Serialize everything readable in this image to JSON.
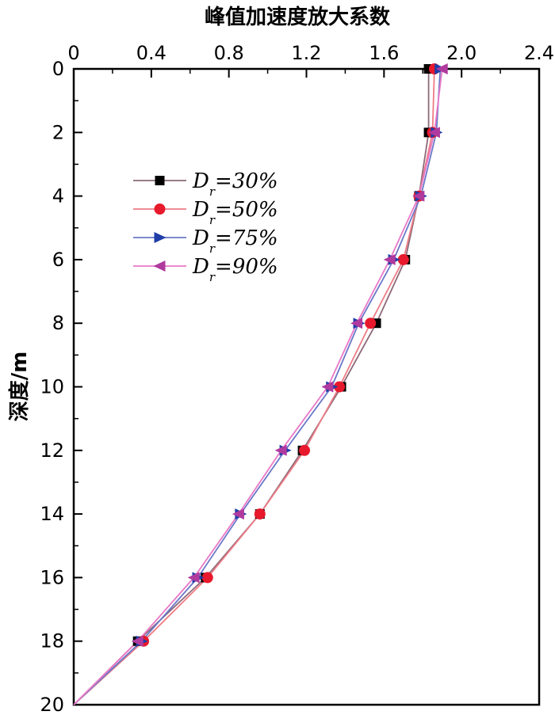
{
  "chart_data": {
    "type": "line",
    "title": "",
    "xlabel": "峰值加速度放大系数",
    "ylabel": "深度/m",
    "xlim": [
      0,
      2.4
    ],
    "ylim": [
      0,
      20
    ],
    "x_axis_position": "top",
    "y_axis_inverted": true,
    "x_ticks": [
      "0",
      "0.4",
      "0.8",
      "1.2",
      "1.6",
      "2.0",
      "2.4"
    ],
    "y_ticks": [
      "0",
      "2",
      "4",
      "6",
      "8",
      "10",
      "12",
      "14",
      "16",
      "18",
      "20"
    ],
    "grid": false,
    "legend_position": "upper-left",
    "series": [
      {
        "name": "Dr=30%",
        "legend_main": "D",
        "legend_sub": "r",
        "legend_tail": "=30%",
        "color": "#000000",
        "line_color": "#8c6a78",
        "marker": "square",
        "points": [
          [
            1.83,
            0
          ],
          [
            1.83,
            2
          ],
          [
            1.78,
            4
          ],
          [
            1.71,
            6
          ],
          [
            1.56,
            8
          ],
          [
            1.38,
            10
          ],
          [
            1.18,
            12
          ],
          [
            0.96,
            14
          ],
          [
            0.68,
            16
          ],
          [
            0.33,
            18
          ],
          [
            0,
            20
          ]
        ]
      },
      {
        "name": "Dr=50%",
        "legend_main": "D",
        "legend_sub": "r",
        "legend_tail": "=50%",
        "color": "#e8192c",
        "line_color": "#ee7c86",
        "marker": "circle",
        "points": [
          [
            1.86,
            0
          ],
          [
            1.85,
            2
          ],
          [
            1.78,
            4
          ],
          [
            1.7,
            6
          ],
          [
            1.53,
            8
          ],
          [
            1.37,
            10
          ],
          [
            1.19,
            12
          ],
          [
            0.96,
            14
          ],
          [
            0.69,
            16
          ],
          [
            0.36,
            18
          ],
          [
            0,
            20
          ]
        ]
      },
      {
        "name": "Dr=75%",
        "legend_main": "D",
        "legend_sub": "r",
        "legend_tail": "=75%",
        "color": "#1f3ea8",
        "line_color": "#6a78c8",
        "marker": "triangle-right",
        "points": [
          [
            1.89,
            0
          ],
          [
            1.87,
            2
          ],
          [
            1.79,
            4
          ],
          [
            1.65,
            6
          ],
          [
            1.47,
            8
          ],
          [
            1.33,
            10
          ],
          [
            1.09,
            12
          ],
          [
            0.86,
            14
          ],
          [
            0.64,
            16
          ],
          [
            0.35,
            18
          ],
          [
            0,
            20
          ]
        ]
      },
      {
        "name": "Dr=90%",
        "legend_main": "D",
        "legend_sub": "r",
        "legend_tail": "=90%",
        "color": "#b03a9e",
        "line_color": "#ea78c6",
        "marker": "triangle-left",
        "points": [
          [
            1.9,
            0
          ],
          [
            1.86,
            2
          ],
          [
            1.78,
            4
          ],
          [
            1.63,
            6
          ],
          [
            1.46,
            8
          ],
          [
            1.31,
            10
          ],
          [
            1.07,
            12
          ],
          [
            0.85,
            14
          ],
          [
            0.62,
            16
          ],
          [
            0.33,
            18
          ],
          [
            0,
            20
          ]
        ]
      }
    ]
  }
}
